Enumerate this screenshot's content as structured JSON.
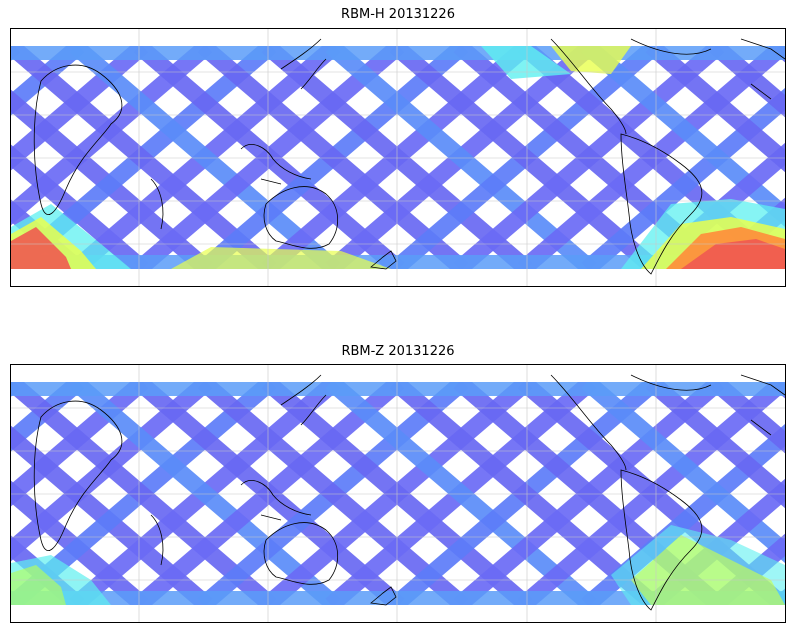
{
  "figure": {
    "panels": [
      {
        "title": "RBM-H 20131226",
        "colormap": "jet",
        "orbit_color_default": "#6a6af5",
        "hot_regions": [
          {
            "where": "southern-ocean-west",
            "colors": [
              "#f05a50",
              "#ffb84d",
              "#e8ff4d",
              "#5ef0f0"
            ]
          },
          {
            "where": "southern-ocean-east",
            "colors": [
              "#f05a50",
              "#ff8c3a",
              "#e8ff4d",
              "#5ef0f0"
            ]
          },
          {
            "where": "north-pacific",
            "colors": [
              "#e8ff4d",
              "#5ef0f0"
            ]
          }
        ]
      },
      {
        "title": "RBM-Z 20131226",
        "colormap": "jet",
        "orbit_color_default": "#6a6af5",
        "hot_regions": [
          {
            "where": "south-atlantic",
            "colors": [
              "#c8ff50",
              "#5ef0f0"
            ]
          },
          {
            "where": "southern-ocean-west",
            "colors": [
              "#5ef0f0",
              "#b6ff5a"
            ]
          }
        ]
      }
    ],
    "gridlines": true,
    "coastlines": true
  }
}
